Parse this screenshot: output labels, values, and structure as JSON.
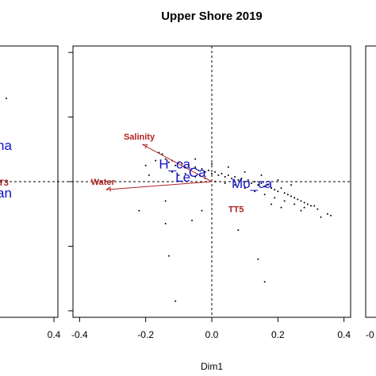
{
  "chart_data": [
    {
      "type": "scatter",
      "title": "Upper Shore 2019",
      "xlabel": "Dim1",
      "ylabel": "",
      "xlim": [
        -0.42,
        0.42
      ],
      "ylim": [
        -0.42,
        0.42
      ],
      "xticks": [
        "-0.4",
        "-0.2",
        "0.0",
        "0.2",
        "0.4"
      ],
      "grid": false,
      "reference_lines": {
        "x": 0,
        "y": 0,
        "style": "dashed"
      },
      "env_vectors": [
        {
          "label": "Salinity",
          "x": -0.21,
          "y": 0.115
        },
        {
          "label": "Water",
          "x": -0.32,
          "y": -0.025
        }
      ],
      "env_labels_no_arrow": [
        {
          "label": "TT5",
          "x": 0.05,
          "y": -0.095
        }
      ],
      "species_labels": [
        {
          "label": "H_ca",
          "x": -0.16,
          "y": 0.04
        },
        {
          "label": "Le",
          "x": -0.11,
          "y": 0.0
        },
        {
          "label": "Ca",
          "x": -0.07,
          "y": 0.015
        },
        {
          "label": "Mo_ca",
          "x": 0.06,
          "y": -0.02
        }
      ],
      "points": [
        [
          -0.16,
          0.09
        ],
        [
          -0.15,
          0.085
        ],
        [
          -0.14,
          0.07
        ],
        [
          -0.13,
          0.06
        ],
        [
          -0.12,
          0.065
        ],
        [
          -0.11,
          0.05
        ],
        [
          -0.1,
          0.06
        ],
        [
          -0.09,
          0.055
        ],
        [
          -0.08,
          0.045
        ],
        [
          -0.07,
          0.05
        ],
        [
          -0.06,
          0.04
        ],
        [
          -0.05,
          0.045
        ],
        [
          -0.04,
          0.035
        ],
        [
          -0.03,
          0.04
        ],
        [
          -0.02,
          0.03
        ],
        [
          -0.01,
          0.035
        ],
        [
          0.0,
          0.025
        ],
        [
          0.01,
          0.03
        ],
        [
          0.02,
          0.02
        ],
        [
          0.03,
          0.025
        ],
        [
          0.04,
          0.015
        ],
        [
          0.05,
          0.02
        ],
        [
          0.06,
          0.01
        ],
        [
          0.07,
          0.015
        ],
        [
          0.08,
          0.005
        ],
        [
          0.09,
          0.01
        ],
        [
          0.1,
          0.0
        ],
        [
          0.11,
          0.005
        ],
        [
          0.12,
          -0.005
        ],
        [
          0.13,
          0.0
        ],
        [
          0.14,
          -0.01
        ],
        [
          0.15,
          -0.005
        ],
        [
          0.16,
          -0.015
        ],
        [
          0.17,
          -0.01
        ],
        [
          0.18,
          -0.02
        ],
        [
          0.19,
          -0.025
        ],
        [
          0.2,
          -0.03
        ],
        [
          0.21,
          -0.02
        ],
        [
          0.22,
          -0.035
        ],
        [
          0.23,
          -0.04
        ],
        [
          0.24,
          -0.045
        ],
        [
          0.25,
          -0.05
        ],
        [
          0.26,
          -0.055
        ],
        [
          0.27,
          -0.06
        ],
        [
          0.28,
          -0.065
        ],
        [
          0.29,
          -0.07
        ],
        [
          0.3,
          -0.075
        ],
        [
          0.32,
          -0.085
        ],
        [
          0.35,
          -0.1
        ],
        [
          0.36,
          -0.105
        ],
        [
          -0.12,
          0.03
        ],
        [
          -0.1,
          0.02
        ],
        [
          -0.08,
          0.025
        ],
        [
          -0.05,
          0.015
        ],
        [
          -0.02,
          0.01
        ],
        [
          0.01,
          0.0
        ],
        [
          0.04,
          -0.005
        ],
        [
          0.07,
          -0.01
        ],
        [
          0.1,
          -0.02
        ],
        [
          0.13,
          -0.03
        ],
        [
          0.16,
          -0.04
        ],
        [
          0.19,
          -0.05
        ],
        [
          0.22,
          -0.06
        ],
        [
          0.25,
          -0.07
        ],
        [
          0.28,
          -0.08
        ],
        [
          -0.2,
          0.05
        ],
        [
          -0.19,
          0.02
        ],
        [
          -0.17,
          0.065
        ],
        [
          -0.05,
          0.07
        ],
        [
          0.0,
          0.055
        ],
        [
          0.05,
          0.045
        ],
        [
          0.1,
          0.03
        ],
        [
          0.15,
          0.02
        ],
        [
          0.2,
          0.005
        ],
        [
          0.24,
          -0.01
        ],
        [
          -0.03,
          -0.09
        ],
        [
          -0.06,
          -0.12
        ],
        [
          -0.13,
          -0.23
        ],
        [
          -0.22,
          -0.09
        ],
        [
          -0.14,
          -0.13
        ],
        [
          -0.14,
          -0.06
        ],
        [
          0.08,
          -0.15
        ],
        [
          0.14,
          -0.24
        ],
        [
          0.16,
          -0.31
        ],
        [
          -0.11,
          -0.37
        ],
        [
          0.21,
          -0.08
        ],
        [
          0.27,
          -0.09
        ],
        [
          0.31,
          -0.075
        ],
        [
          0.33,
          -0.11
        ],
        [
          0.18,
          -0.07
        ]
      ]
    }
  ],
  "left_panel": {
    "xticks": [
      "0.4"
    ],
    "labels": [
      {
        "text": "na",
        "class": "sp"
      },
      {
        "text": "T3",
        "class": "env"
      },
      {
        "text": "an",
        "class": "sp"
      }
    ]
  },
  "right_panel": {
    "xticks": [
      "-0"
    ]
  }
}
